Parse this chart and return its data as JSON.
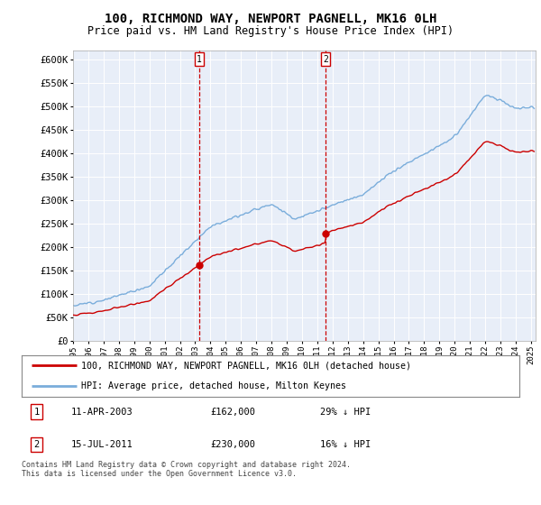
{
  "title": "100, RICHMOND WAY, NEWPORT PAGNELL, MK16 0LH",
  "subtitle": "Price paid vs. HM Land Registry's House Price Index (HPI)",
  "legend_line1": "100, RICHMOND WAY, NEWPORT PAGNELL, MK16 0LH (detached house)",
  "legend_line2": "HPI: Average price, detached house, Milton Keynes",
  "annotation1_label": "1",
  "annotation1_date": "11-APR-2003",
  "annotation1_price": "£162,000",
  "annotation1_hpi": "29% ↓ HPI",
  "annotation2_label": "2",
  "annotation2_date": "15-JUL-2011",
  "annotation2_price": "£230,000",
  "annotation2_hpi": "16% ↓ HPI",
  "footer": "Contains HM Land Registry data © Crown copyright and database right 2024.\nThis data is licensed under the Open Government Licence v3.0.",
  "house_color": "#cc0000",
  "hpi_color": "#7aaddb",
  "vline_color": "#cc0000",
  "plot_background": "#e8eef8",
  "ylim": [
    0,
    620000
  ],
  "yticks": [
    0,
    50000,
    100000,
    150000,
    200000,
    250000,
    300000,
    350000,
    400000,
    450000,
    500000,
    550000,
    600000
  ],
  "sale1_x": 2003.27,
  "sale1_y": 162000,
  "sale2_x": 2011.54,
  "sale2_y": 230000,
  "xmin": 1995,
  "xmax": 2025.3
}
